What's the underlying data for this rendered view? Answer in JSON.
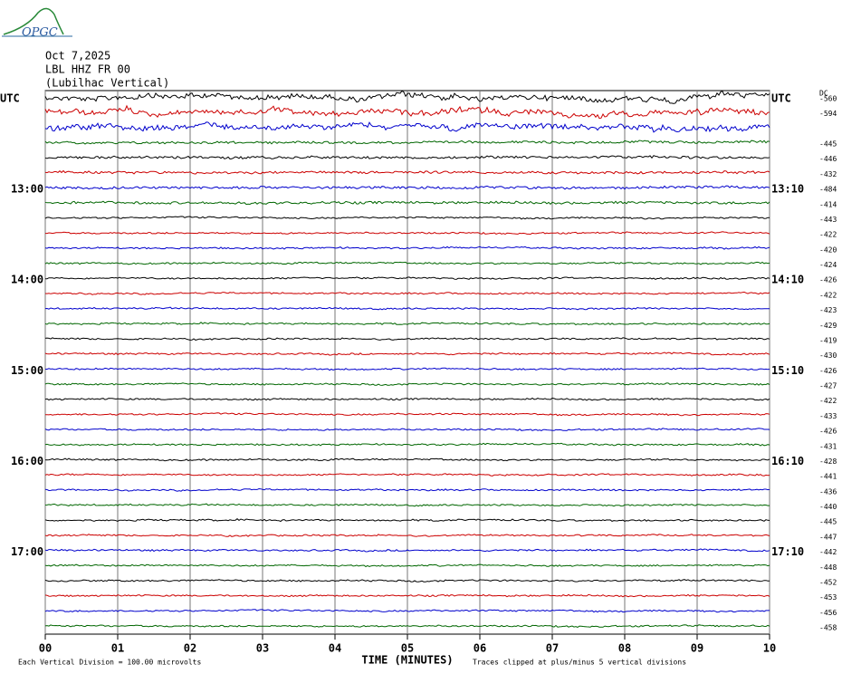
{
  "logo": "OPGC",
  "header": {
    "date": "Oct 7,2025",
    "station": "LBL HHZ FR 00",
    "location": "(Lubilhac Vertical)"
  },
  "chart_data": {
    "type": "helicorder",
    "left_labels": [
      "UTC",
      null,
      null,
      null,
      null,
      null,
      "13:00",
      null,
      null,
      null,
      null,
      null,
      "14:00",
      null,
      null,
      null,
      null,
      null,
      "15:00",
      null,
      null,
      null,
      null,
      null,
      "16:00",
      null,
      null,
      null,
      null,
      null,
      "17:00",
      null,
      null,
      null,
      null,
      null
    ],
    "right_labels": [
      "UTC",
      null,
      null,
      null,
      null,
      null,
      "13:10",
      null,
      null,
      null,
      null,
      null,
      "14:10",
      null,
      null,
      null,
      null,
      null,
      "15:10",
      null,
      null,
      null,
      null,
      null,
      "16:10",
      null,
      null,
      null,
      null,
      null,
      "17:10",
      null,
      null,
      null,
      null,
      null
    ],
    "dc_label": "DC",
    "dc_offsets": [
      -560,
      -594,
      null,
      -445,
      -446,
      -432,
      -484,
      -414,
      -443,
      -422,
      -420,
      -424,
      -426,
      -422,
      -423,
      -429,
      -419,
      -430,
      -426,
      -427,
      -422,
      -433,
      -426,
      -431,
      -428,
      -441,
      -436,
      -440,
      -445,
      -447,
      -442,
      -448,
      -452,
      -453,
      -456,
      -458
    ],
    "trace_colors": [
      "#000000",
      "#cc0000",
      "#0000cc",
      "#006600"
    ],
    "xlim": [
      0,
      10
    ],
    "xticks": [
      {
        "value": 0,
        "label": "00"
      },
      {
        "value": 1,
        "label": "01"
      },
      {
        "value": 2,
        "label": "02"
      },
      {
        "value": 3,
        "label": "03"
      },
      {
        "value": 4,
        "label": "04"
      },
      {
        "value": 5,
        "label": "05"
      },
      {
        "value": 6,
        "label": "06"
      },
      {
        "value": 7,
        "label": "07"
      },
      {
        "value": 8,
        "label": "08"
      },
      {
        "value": 9,
        "label": "09"
      },
      {
        "value": 10,
        "label": "10"
      }
    ],
    "xlabel": "TIME (MINUTES)",
    "scale_note": "Each Vertical Division =  100.00 microvolts",
    "clip_note": "Traces clipped at plus/minus 5 vertical divisions"
  }
}
